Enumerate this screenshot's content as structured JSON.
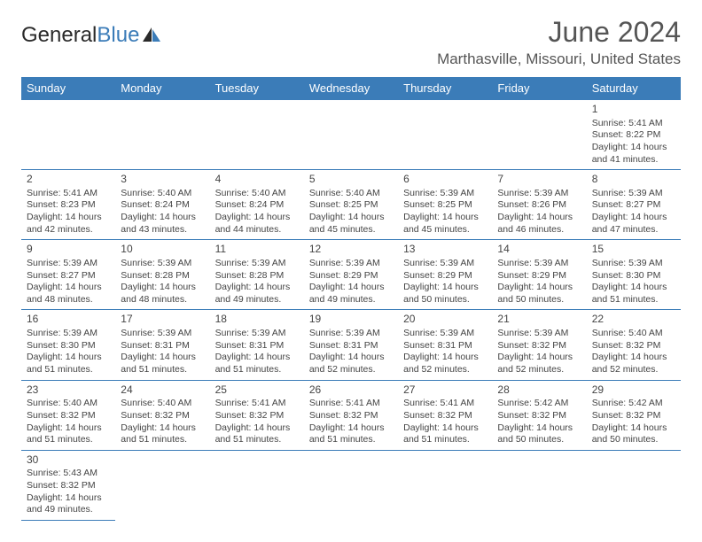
{
  "logo": {
    "text_dark": "General",
    "text_blue": "Blue"
  },
  "title": "June 2024",
  "location": "Marthasville, Missouri, United States",
  "day_headers": [
    "Sunday",
    "Monday",
    "Tuesday",
    "Wednesday",
    "Thursday",
    "Friday",
    "Saturday"
  ],
  "colors": {
    "accent": "#3b7cb8",
    "text": "#444444",
    "bg": "#ffffff"
  },
  "weeks": [
    [
      null,
      null,
      null,
      null,
      null,
      null,
      {
        "n": "1",
        "sr": "Sunrise: 5:41 AM",
        "ss": "Sunset: 8:22 PM",
        "d1": "Daylight: 14 hours",
        "d2": "and 41 minutes."
      }
    ],
    [
      {
        "n": "2",
        "sr": "Sunrise: 5:41 AM",
        "ss": "Sunset: 8:23 PM",
        "d1": "Daylight: 14 hours",
        "d2": "and 42 minutes."
      },
      {
        "n": "3",
        "sr": "Sunrise: 5:40 AM",
        "ss": "Sunset: 8:24 PM",
        "d1": "Daylight: 14 hours",
        "d2": "and 43 minutes."
      },
      {
        "n": "4",
        "sr": "Sunrise: 5:40 AM",
        "ss": "Sunset: 8:24 PM",
        "d1": "Daylight: 14 hours",
        "d2": "and 44 minutes."
      },
      {
        "n": "5",
        "sr": "Sunrise: 5:40 AM",
        "ss": "Sunset: 8:25 PM",
        "d1": "Daylight: 14 hours",
        "d2": "and 45 minutes."
      },
      {
        "n": "6",
        "sr": "Sunrise: 5:39 AM",
        "ss": "Sunset: 8:25 PM",
        "d1": "Daylight: 14 hours",
        "d2": "and 45 minutes."
      },
      {
        "n": "7",
        "sr": "Sunrise: 5:39 AM",
        "ss": "Sunset: 8:26 PM",
        "d1": "Daylight: 14 hours",
        "d2": "and 46 minutes."
      },
      {
        "n": "8",
        "sr": "Sunrise: 5:39 AM",
        "ss": "Sunset: 8:27 PM",
        "d1": "Daylight: 14 hours",
        "d2": "and 47 minutes."
      }
    ],
    [
      {
        "n": "9",
        "sr": "Sunrise: 5:39 AM",
        "ss": "Sunset: 8:27 PM",
        "d1": "Daylight: 14 hours",
        "d2": "and 48 minutes."
      },
      {
        "n": "10",
        "sr": "Sunrise: 5:39 AM",
        "ss": "Sunset: 8:28 PM",
        "d1": "Daylight: 14 hours",
        "d2": "and 48 minutes."
      },
      {
        "n": "11",
        "sr": "Sunrise: 5:39 AM",
        "ss": "Sunset: 8:28 PM",
        "d1": "Daylight: 14 hours",
        "d2": "and 49 minutes."
      },
      {
        "n": "12",
        "sr": "Sunrise: 5:39 AM",
        "ss": "Sunset: 8:29 PM",
        "d1": "Daylight: 14 hours",
        "d2": "and 49 minutes."
      },
      {
        "n": "13",
        "sr": "Sunrise: 5:39 AM",
        "ss": "Sunset: 8:29 PM",
        "d1": "Daylight: 14 hours",
        "d2": "and 50 minutes."
      },
      {
        "n": "14",
        "sr": "Sunrise: 5:39 AM",
        "ss": "Sunset: 8:29 PM",
        "d1": "Daylight: 14 hours",
        "d2": "and 50 minutes."
      },
      {
        "n": "15",
        "sr": "Sunrise: 5:39 AM",
        "ss": "Sunset: 8:30 PM",
        "d1": "Daylight: 14 hours",
        "d2": "and 51 minutes."
      }
    ],
    [
      {
        "n": "16",
        "sr": "Sunrise: 5:39 AM",
        "ss": "Sunset: 8:30 PM",
        "d1": "Daylight: 14 hours",
        "d2": "and 51 minutes."
      },
      {
        "n": "17",
        "sr": "Sunrise: 5:39 AM",
        "ss": "Sunset: 8:31 PM",
        "d1": "Daylight: 14 hours",
        "d2": "and 51 minutes."
      },
      {
        "n": "18",
        "sr": "Sunrise: 5:39 AM",
        "ss": "Sunset: 8:31 PM",
        "d1": "Daylight: 14 hours",
        "d2": "and 51 minutes."
      },
      {
        "n": "19",
        "sr": "Sunrise: 5:39 AM",
        "ss": "Sunset: 8:31 PM",
        "d1": "Daylight: 14 hours",
        "d2": "and 52 minutes."
      },
      {
        "n": "20",
        "sr": "Sunrise: 5:39 AM",
        "ss": "Sunset: 8:31 PM",
        "d1": "Daylight: 14 hours",
        "d2": "and 52 minutes."
      },
      {
        "n": "21",
        "sr": "Sunrise: 5:39 AM",
        "ss": "Sunset: 8:32 PM",
        "d1": "Daylight: 14 hours",
        "d2": "and 52 minutes."
      },
      {
        "n": "22",
        "sr": "Sunrise: 5:40 AM",
        "ss": "Sunset: 8:32 PM",
        "d1": "Daylight: 14 hours",
        "d2": "and 52 minutes."
      }
    ],
    [
      {
        "n": "23",
        "sr": "Sunrise: 5:40 AM",
        "ss": "Sunset: 8:32 PM",
        "d1": "Daylight: 14 hours",
        "d2": "and 51 minutes."
      },
      {
        "n": "24",
        "sr": "Sunrise: 5:40 AM",
        "ss": "Sunset: 8:32 PM",
        "d1": "Daylight: 14 hours",
        "d2": "and 51 minutes."
      },
      {
        "n": "25",
        "sr": "Sunrise: 5:41 AM",
        "ss": "Sunset: 8:32 PM",
        "d1": "Daylight: 14 hours",
        "d2": "and 51 minutes."
      },
      {
        "n": "26",
        "sr": "Sunrise: 5:41 AM",
        "ss": "Sunset: 8:32 PM",
        "d1": "Daylight: 14 hours",
        "d2": "and 51 minutes."
      },
      {
        "n": "27",
        "sr": "Sunrise: 5:41 AM",
        "ss": "Sunset: 8:32 PM",
        "d1": "Daylight: 14 hours",
        "d2": "and 51 minutes."
      },
      {
        "n": "28",
        "sr": "Sunrise: 5:42 AM",
        "ss": "Sunset: 8:32 PM",
        "d1": "Daylight: 14 hours",
        "d2": "and 50 minutes."
      },
      {
        "n": "29",
        "sr": "Sunrise: 5:42 AM",
        "ss": "Sunset: 8:32 PM",
        "d1": "Daylight: 14 hours",
        "d2": "and 50 minutes."
      }
    ],
    [
      {
        "n": "30",
        "sr": "Sunrise: 5:43 AM",
        "ss": "Sunset: 8:32 PM",
        "d1": "Daylight: 14 hours",
        "d2": "and 49 minutes."
      },
      null,
      null,
      null,
      null,
      null,
      null
    ]
  ]
}
